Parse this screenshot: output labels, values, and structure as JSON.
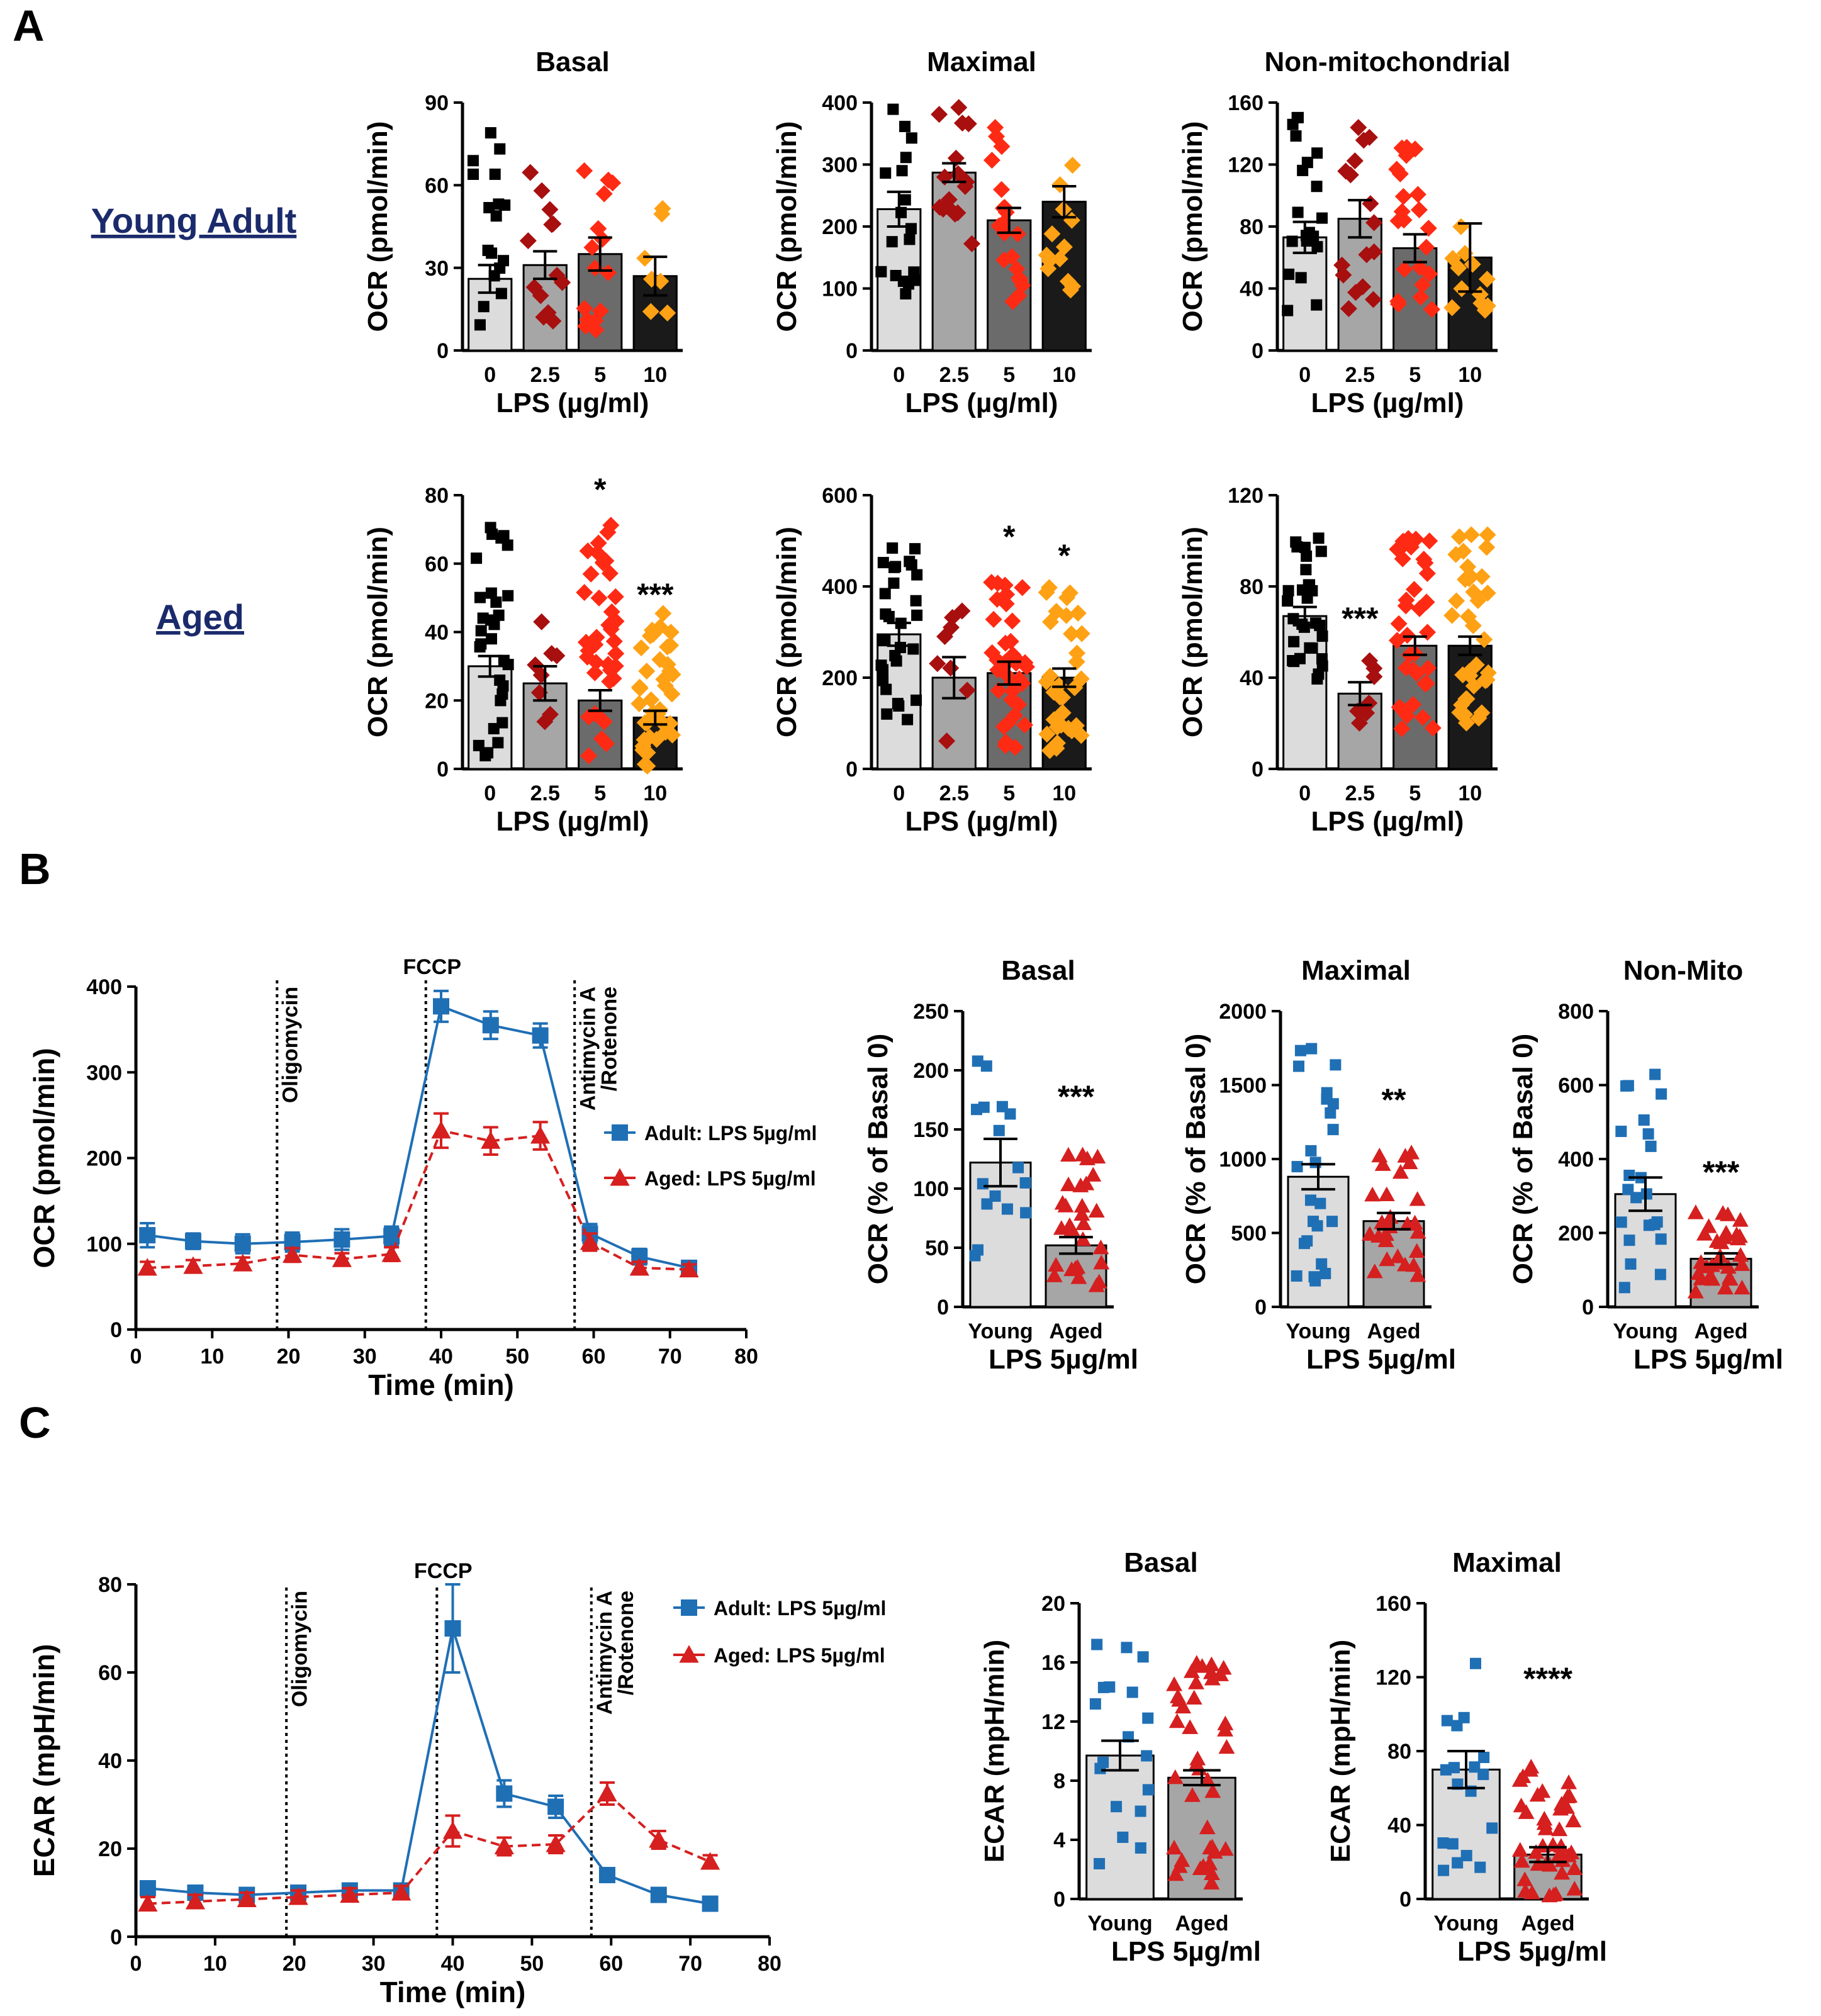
{
  "panel_labels": {
    "a": "A",
    "b": "B",
    "c": "C"
  },
  "row_labels": {
    "young": "Young Adult",
    "aged": "Aged"
  },
  "colors": {
    "young_blue": "#1f6fb5",
    "aged_red": "#d61f1f",
    "dose_0": "#000000",
    "dose_2_5": "#a80f0f",
    "dose_5": "#ff2a14",
    "dose_10": "#ffa114",
    "bar_light": "#dcdcdc",
    "bar_mid": "#a6a6a6",
    "bar_dark": "#6b6b6b",
    "bar_black": "#1a1a1a"
  },
  "chart_data": [
    {
      "id": "a_ya_basal",
      "type": "bar",
      "title": "Basal",
      "ylabel": "OCR (pmol/min)",
      "xlabel": "LPS (µg/ml)",
      "categories": [
        "0",
        "2.5",
        "5",
        "10"
      ],
      "ylim": [
        0,
        90
      ],
      "yticks": [
        "0",
        "30",
        "60",
        "90"
      ],
      "values": [
        26,
        31,
        35,
        27
      ],
      "sem": [
        5,
        5,
        6,
        7
      ],
      "n_points": [
        17,
        13,
        15,
        7
      ],
      "annotations": [
        "",
        "",
        "",
        ""
      ]
    },
    {
      "id": "a_ya_maximal",
      "type": "bar",
      "title": "Maximal",
      "ylabel": "OCR (pmol/min)",
      "xlabel": "LPS (µg/ml)",
      "categories": [
        "0",
        "2.5",
        "5",
        "10"
      ],
      "ylim": [
        0,
        400
      ],
      "yticks": [
        "0",
        "100",
        "200",
        "300",
        "400"
      ],
      "values": [
        228,
        287,
        210,
        240
      ],
      "sem": [
        28,
        15,
        20,
        25
      ],
      "n_points": [
        18,
        16,
        20,
        13
      ],
      "annotations": [
        "",
        "",
        "",
        ""
      ]
    },
    {
      "id": "a_ya_nonmito",
      "type": "bar",
      "title": "Non-mitochondrial",
      "ylabel": "OCR (pmol/min)",
      "xlabel": "LPS (µg/ml)",
      "categories": [
        "0",
        "2.5",
        "5",
        "10"
      ],
      "ylim": [
        0,
        160
      ],
      "yticks": [
        "0",
        "40",
        "80",
        "120",
        "160"
      ],
      "values": [
        73,
        85,
        66,
        60
      ],
      "sem": [
        10,
        12,
        9,
        22
      ],
      "n_points": [
        20,
        16,
        22,
        12
      ],
      "annotations": [
        "",
        "",
        "",
        ""
      ]
    },
    {
      "id": "a_aged_basal",
      "type": "bar",
      "title": "",
      "ylabel": "OCR (pmol/min)",
      "xlabel": "LPS (µg/ml)",
      "categories": [
        "0",
        "2.5",
        "5",
        "10"
      ],
      "ylim": [
        0,
        80
      ],
      "yticks": [
        "0",
        "20",
        "40",
        "60",
        "80"
      ],
      "values": [
        30,
        25,
        20,
        15
      ],
      "sem": [
        3,
        5,
        3,
        2
      ],
      "n_points": [
        30,
        8,
        38,
        40
      ],
      "annotations": [
        "",
        "",
        "*",
        "***"
      ]
    },
    {
      "id": "a_aged_maximal",
      "type": "bar",
      "title": "",
      "ylabel": "OCR (pmol/min)",
      "xlabel": "LPS (µg/ml)",
      "categories": [
        "0",
        "2.5",
        "5",
        "10"
      ],
      "ylim": [
        0,
        600
      ],
      "yticks": [
        "0",
        "200",
        "400",
        "600"
      ],
      "values": [
        295,
        200,
        210,
        200
      ],
      "sem": [
        25,
        45,
        25,
        20
      ],
      "n_points": [
        30,
        8,
        38,
        34
      ],
      "annotations": [
        "",
        "",
        "*",
        "*"
      ]
    },
    {
      "id": "a_aged_nonmito",
      "type": "bar",
      "title": "",
      "ylabel": "OCR (pmol/min)",
      "xlabel": "LPS (µg/ml)",
      "categories": [
        "0",
        "2.5",
        "5",
        "10"
      ],
      "ylim": [
        0,
        120
      ],
      "yticks": [
        "0",
        "40",
        "80",
        "120"
      ],
      "values": [
        67,
        33,
        54,
        54
      ],
      "sem": [
        4,
        5,
        4,
        4
      ],
      "n_points": [
        30,
        8,
        36,
        36
      ],
      "annotations": [
        "",
        "***",
        "",
        ""
      ]
    },
    {
      "id": "b_timecourse",
      "type": "line",
      "title": "",
      "ylabel": "OCR (pmol/min)",
      "xlabel": "Time (min)",
      "xlim": [
        0,
        80
      ],
      "ylim": [
        0,
        400
      ],
      "xticks": [
        "0",
        "10",
        "20",
        "30",
        "40",
        "50",
        "60",
        "70",
        "80"
      ],
      "yticks": [
        "0",
        "100",
        "200",
        "300",
        "400"
      ],
      "x": [
        1.5,
        7.5,
        14,
        20.5,
        27,
        33.5,
        40,
        46.5,
        53,
        59.5,
        66,
        72.5
      ],
      "injections": [
        {
          "x": 18.5,
          "label": "Oligomycin"
        },
        {
          "x": 38,
          "label": "FCCP"
        },
        {
          "x": 57.5,
          "label": "Antimycin A /Rotenone"
        }
      ],
      "series": [
        {
          "name": "Adult: LPS 5µg/ml",
          "values": [
            110,
            103,
            100,
            102,
            105,
            109,
            377,
            355,
            343,
            112,
            85,
            72
          ],
          "err": [
            14,
            9,
            11,
            11,
            12,
            11,
            18,
            16,
            14,
            11,
            9,
            8
          ]
        },
        {
          "name": "Aged: LPS 5µg/ml",
          "values": [
            72,
            74,
            77,
            87,
            82,
            88,
            232,
            220,
            226,
            102,
            72,
            70
          ],
          "err": [
            7,
            7,
            7,
            8,
            7,
            8,
            20,
            16,
            16,
            10,
            7,
            6
          ]
        }
      ]
    },
    {
      "id": "b_basal",
      "type": "bar",
      "title": "Basal",
      "ylabel": "OCR (% of Basal 0)",
      "xlabel": "LPS 5µg/ml",
      "categories": [
        "Young",
        "Aged"
      ],
      "ylim": [
        0,
        250
      ],
      "yticks": [
        "0",
        "50",
        "100",
        "150",
        "200",
        "250"
      ],
      "values": [
        122,
        52
      ],
      "sem": [
        20,
        7
      ],
      "n_points": [
        16,
        28
      ],
      "annotations": [
        "",
        "***"
      ]
    },
    {
      "id": "b_maximal",
      "type": "bar",
      "title": "Maximal",
      "ylabel": "OCR (% of Basal 0)",
      "xlabel": "LPS 5µg/ml",
      "categories": [
        "Young",
        "Aged"
      ],
      "ylim": [
        0,
        2000
      ],
      "yticks": [
        "0",
        "500",
        "1000",
        "1500",
        "2000"
      ],
      "values": [
        880,
        580
      ],
      "sem": [
        85,
        55
      ],
      "n_points": [
        24,
        26
      ],
      "annotations": [
        "",
        "**"
      ]
    },
    {
      "id": "b_nonmito",
      "type": "bar",
      "title": "Non-Mito",
      "ylabel": "OCR (% of Basal 0)",
      "xlabel": "LPS 5µg/ml",
      "categories": [
        "Young",
        "Aged"
      ],
      "ylim": [
        0,
        800
      ],
      "yticks": [
        "0",
        "200",
        "400",
        "600",
        "800"
      ],
      "values": [
        305,
        130
      ],
      "sem": [
        45,
        15
      ],
      "n_points": [
        22,
        30
      ],
      "annotations": [
        "",
        "***"
      ]
    },
    {
      "id": "c_timecourse",
      "type": "line",
      "title": "",
      "ylabel": "ECAR (mpH/min)",
      "xlabel": "Time (min)",
      "xlim": [
        0,
        80
      ],
      "ylim": [
        0,
        80
      ],
      "xticks": [
        "0",
        "10",
        "20",
        "30",
        "40",
        "50",
        "60",
        "70",
        "80"
      ],
      "yticks": [
        "0",
        "20",
        "40",
        "60",
        "80"
      ],
      "x": [
        1.5,
        7.5,
        14,
        20.5,
        27,
        33.5,
        40,
        46.5,
        53,
        59.5,
        66,
        72.5
      ],
      "injections": [
        {
          "x": 19,
          "label": "Oligomycin"
        },
        {
          "x": 38,
          "label": "FCCP"
        },
        {
          "x": 57.5,
          "label": "Antimycin A /Rotenone"
        }
      ],
      "series": [
        {
          "name": "Adult: LPS 5µg/ml",
          "values": [
            11,
            10,
            9.5,
            10,
            10.5,
            10.5,
            70,
            32.5,
            29.5,
            14,
            9.5,
            7.5
          ],
          "err": [
            1.5,
            1.2,
            1.2,
            1.5,
            1.5,
            1.5,
            10,
            3,
            2.5,
            1.5,
            1,
            1
          ]
        },
        {
          "name": "Aged: LPS 5µg/ml",
          "values": [
            7.5,
            8,
            8.5,
            9,
            9.5,
            10,
            24,
            20.5,
            21,
            32.5,
            22,
            17
          ],
          "err": [
            1.5,
            1.5,
            1.5,
            1.5,
            1.5,
            1.5,
            3.5,
            2,
            2,
            2.5,
            2,
            1.5
          ]
        }
      ]
    },
    {
      "id": "c_basal",
      "type": "bar",
      "title": "Basal",
      "ylabel": "ECAR (mpH/min)",
      "xlabel": "LPS 5µg/ml",
      "categories": [
        "Young",
        "Aged"
      ],
      "ylim": [
        0,
        20
      ],
      "yticks": [
        "0",
        "4",
        "8",
        "12",
        "16",
        "20"
      ],
      "values": [
        9.7,
        8.2
      ],
      "sem": [
        1.0,
        0.5
      ],
      "n_points": [
        18,
        40
      ],
      "annotations": [
        "",
        ""
      ]
    },
    {
      "id": "c_maximal",
      "type": "bar",
      "title": "Maximal",
      "ylabel": "ECAR (mpH/min)",
      "xlabel": "LPS 5µg/ml",
      "categories": [
        "Young",
        "Aged"
      ],
      "ylim": [
        0,
        160
      ],
      "yticks": [
        "0",
        "40",
        "80",
        "120",
        "160"
      ],
      "values": [
        70,
        24
      ],
      "sem": [
        10,
        4
      ],
      "n_points": [
        18,
        42
      ],
      "annotations": [
        "",
        "****"
      ]
    }
  ]
}
